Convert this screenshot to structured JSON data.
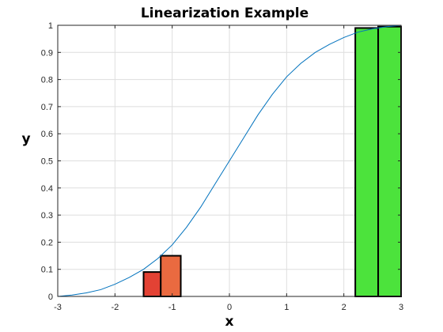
{
  "chart_data": {
    "type": "line",
    "title": "Linearization Example",
    "xlabel": "x",
    "ylabel": "y",
    "xlim": [
      -3,
      3
    ],
    "ylim": [
      0,
      1
    ],
    "grid": true,
    "xticks": [
      -3,
      -2,
      -1,
      0,
      1,
      2,
      3
    ],
    "yticks": [
      0,
      0.1,
      0.2,
      0.3,
      0.4,
      0.5,
      0.6,
      0.7,
      0.8,
      0.9,
      1
    ],
    "xtick_labels": [
      "-3",
      "-2",
      "-1",
      "0",
      "1",
      "2",
      "3"
    ],
    "ytick_labels": [
      "0",
      "0.1",
      "0.2",
      "0.3",
      "0.4",
      "0.5",
      "0.6",
      "0.7",
      "0.8",
      "0.9",
      "1"
    ],
    "series": [
      {
        "color": "#0072BD",
        "x": [
          -3.0,
          -2.75,
          -2.5,
          -2.25,
          -2.0,
          -1.75,
          -1.5,
          -1.25,
          -1.0,
          -0.75,
          -0.5,
          -0.25,
          0.0,
          0.25,
          0.5,
          0.75,
          1.0,
          1.25,
          1.5,
          1.75,
          2.0,
          2.25,
          2.5,
          2.75,
          3.0
        ],
        "y": [
          0.0,
          0.005,
          0.013,
          0.025,
          0.045,
          0.07,
          0.1,
          0.14,
          0.19,
          0.255,
          0.33,
          0.415,
          0.5,
          0.585,
          0.67,
          0.745,
          0.81,
          0.86,
          0.9,
          0.93,
          0.955,
          0.975,
          0.987,
          0.995,
          1.0
        ]
      }
    ],
    "bars": [
      {
        "x0": -1.5,
        "x1": -1.2,
        "y": 0.09,
        "color": "#E34234"
      },
      {
        "x0": -1.2,
        "x1": -0.85,
        "y": 0.15,
        "color": "#EA6A40"
      },
      {
        "x0": 2.2,
        "x1": 2.6,
        "y": 0.99,
        "color": "#4CE33C"
      },
      {
        "x0": 2.6,
        "x1": 3.0,
        "y": 0.995,
        "color": "#4CE33C"
      }
    ]
  }
}
